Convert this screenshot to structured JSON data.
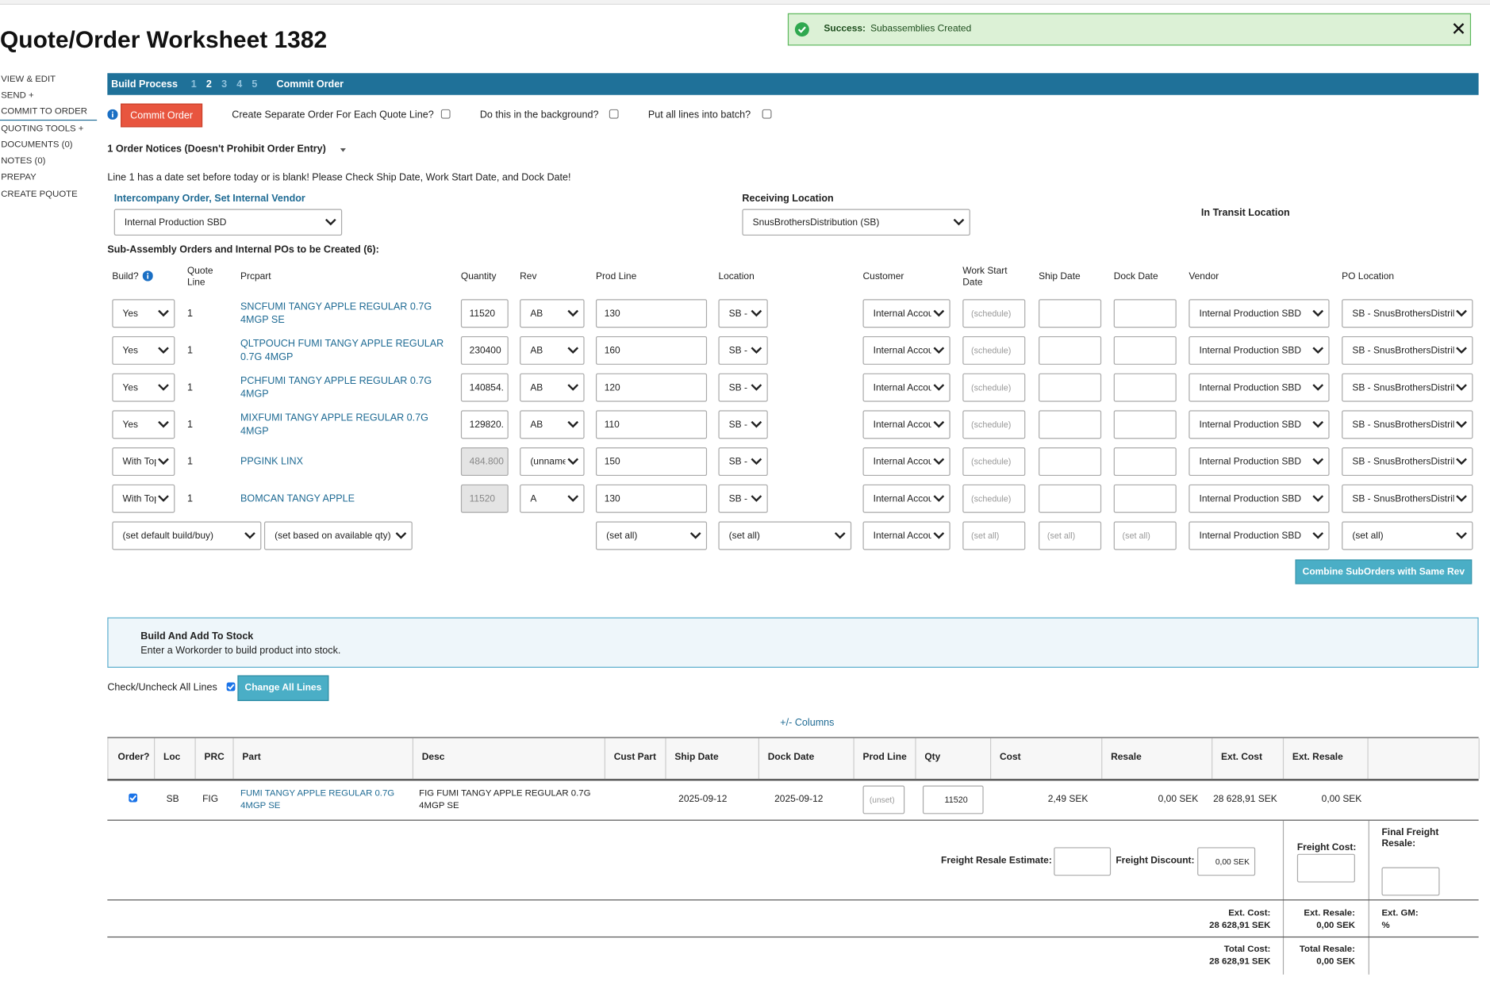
{
  "header": {
    "title": "Quote/Order Worksheet 1382"
  },
  "toast": {
    "label": "Success:",
    "message": "Subassemblies Created"
  },
  "sidebar": [
    "VIEW & EDIT",
    "SEND +",
    "COMMIT TO ORDER",
    "QUOTING TOOLS +",
    "DOCUMENTS (0)",
    "NOTES (0)",
    "PREPAY",
    "CREATE PQUOTE"
  ],
  "process_bar": {
    "label": "Build Process",
    "steps": [
      "1",
      "2",
      "3",
      "4",
      "5"
    ],
    "commit": "Commit Order"
  },
  "commit_row": {
    "button": "Commit Order",
    "options": [
      "Create Separate Order For Each Quote Line?",
      "Do this in the background?",
      "Put all lines into batch?"
    ]
  },
  "notices": {
    "heading": "1 Order Notices (Doesn't Prohibit Order Entry)",
    "message": "Line 1 has a date set before today or is blank! Please Check Ship Date, Work Start Date, and Dock Date!"
  },
  "intercompany": {
    "label": "Intercompany Order, Set Internal Vendor",
    "value": "Internal Production SBD"
  },
  "receiving": {
    "label": "Receiving Location",
    "value": "SnusBrothersDistribution (SB)"
  },
  "in_transit": {
    "label": "In Transit Location"
  },
  "subassembly": {
    "heading": "Sub-Assembly Orders and Internal POs to be Created (6):",
    "columns": [
      "Build?",
      "Quote Line",
      "Prcpart",
      "Quantity",
      "Rev",
      "Prod Line",
      "Location",
      "Customer",
      "Work Start Date",
      "Ship Date",
      "Dock Date",
      "Vendor",
      "PO Location"
    ],
    "rows": [
      [
        "Yes",
        "1",
        "SNCFUMI TANGY APPLE REGULAR 0.7G 4MGP SE",
        "11520",
        "AB",
        "130",
        "SB - :",
        "Internal Accou",
        "(schedule)",
        "Internal Production SBD",
        "SB - SnusBrothersDistrib"
      ],
      [
        "Yes",
        "1",
        "QLTPOUCH FUMI TANGY APPLE REGULAR 0.7G 4MGP",
        "230400",
        "AB",
        "160",
        "SB - :",
        "Internal Accou",
        "(schedule)",
        "Internal Production SBD",
        "SB - SnusBrothersDistrib"
      ],
      [
        "Yes",
        "1",
        "PCHFUMI TANGY APPLE REGULAR 0.7G 4MGP",
        "140854.",
        "AB",
        "120",
        "SB - :",
        "Internal Accou",
        "(schedule)",
        "Internal Production SBD",
        "SB - SnusBrothersDistrib"
      ],
      [
        "Yes",
        "1",
        "MIXFUMI TANGY APPLE REGULAR 0.7G 4MGP",
        "129820.",
        "AB",
        "110",
        "SB - :",
        "Internal Accou",
        "(schedule)",
        "Internal Production SBD",
        "SB - SnusBrothersDistrib"
      ],
      [
        "With Top",
        "1",
        "PPGINK LINX",
        "484.800",
        "(unname",
        "150",
        "SB - :",
        "Internal Accou",
        "(schedule)",
        "Internal Production SBD",
        "SB - SnusBrothersDistrib"
      ],
      [
        "With Top",
        "1",
        "BOMCAN TANGY APPLE",
        "11520",
        "A",
        "130",
        "SB - :",
        "Internal Accou",
        "(schedule)",
        "Internal Production SBD",
        "SB - SnusBrothersDistrib"
      ]
    ],
    "footer": [
      "(set default build/buy)",
      "(set based on available qty)",
      "(set all)",
      "(set all)",
      "Internal Accou",
      "(set all)",
      "(set all)",
      "(set all)",
      "Internal Production SBD",
      "(set all)"
    ],
    "combine": "Combine SubOrders with Same Rev"
  },
  "build_stock": {
    "title": "Build And Add To Stock",
    "text": "Enter a Workorder to build product into stock."
  },
  "check_all": {
    "label": "Check/Uncheck All Lines",
    "button": "Change All Lines"
  },
  "columns_toggle": "+/- Columns",
  "lines_table": {
    "columns": [
      "Order?",
      "Loc",
      "PRC",
      "Part",
      "Desc",
      "Cust Part",
      "Ship Date",
      "Dock Date",
      "Prod Line",
      "Qty",
      "Cost",
      "Resale",
      "Ext. Cost",
      "Ext. Resale"
    ],
    "rows": [
      [
        "SB",
        "FIG",
        "FUMI TANGY APPLE REGULAR 0.7G 4MGP SE",
        "FIG FUMI TANGY APPLE REGULAR 0.7G 4MGP SE",
        "2025-09-12",
        "2025-09-12",
        "(unset)",
        "11520",
        "2,49 SEK",
        "0,00 SEK",
        "28 628,91 SEK",
        "0,00 SEK"
      ]
    ]
  },
  "freight": {
    "resale_estimate": "Freight Resale Estimate:",
    "discount": "Freight Discount:",
    "discount_value": "0,00 SEK",
    "cost": "Freight Cost:",
    "final_resale": "Final Freight Resale:"
  },
  "totals": {
    "ext_cost_label": "Ext. Cost:",
    "ext_cost": "28 628,91 SEK",
    "ext_resale_label": "Ext. Resale:",
    "ext_resale": "0,00 SEK",
    "ext_gm_label": "Ext. GM:",
    "ext_gm": "%",
    "total_cost_label": "Total Cost:",
    "total_cost": "28 628,91 SEK",
    "total_resale_label": "Total Resale:",
    "total_resale": "0,00 SEK"
  }
}
